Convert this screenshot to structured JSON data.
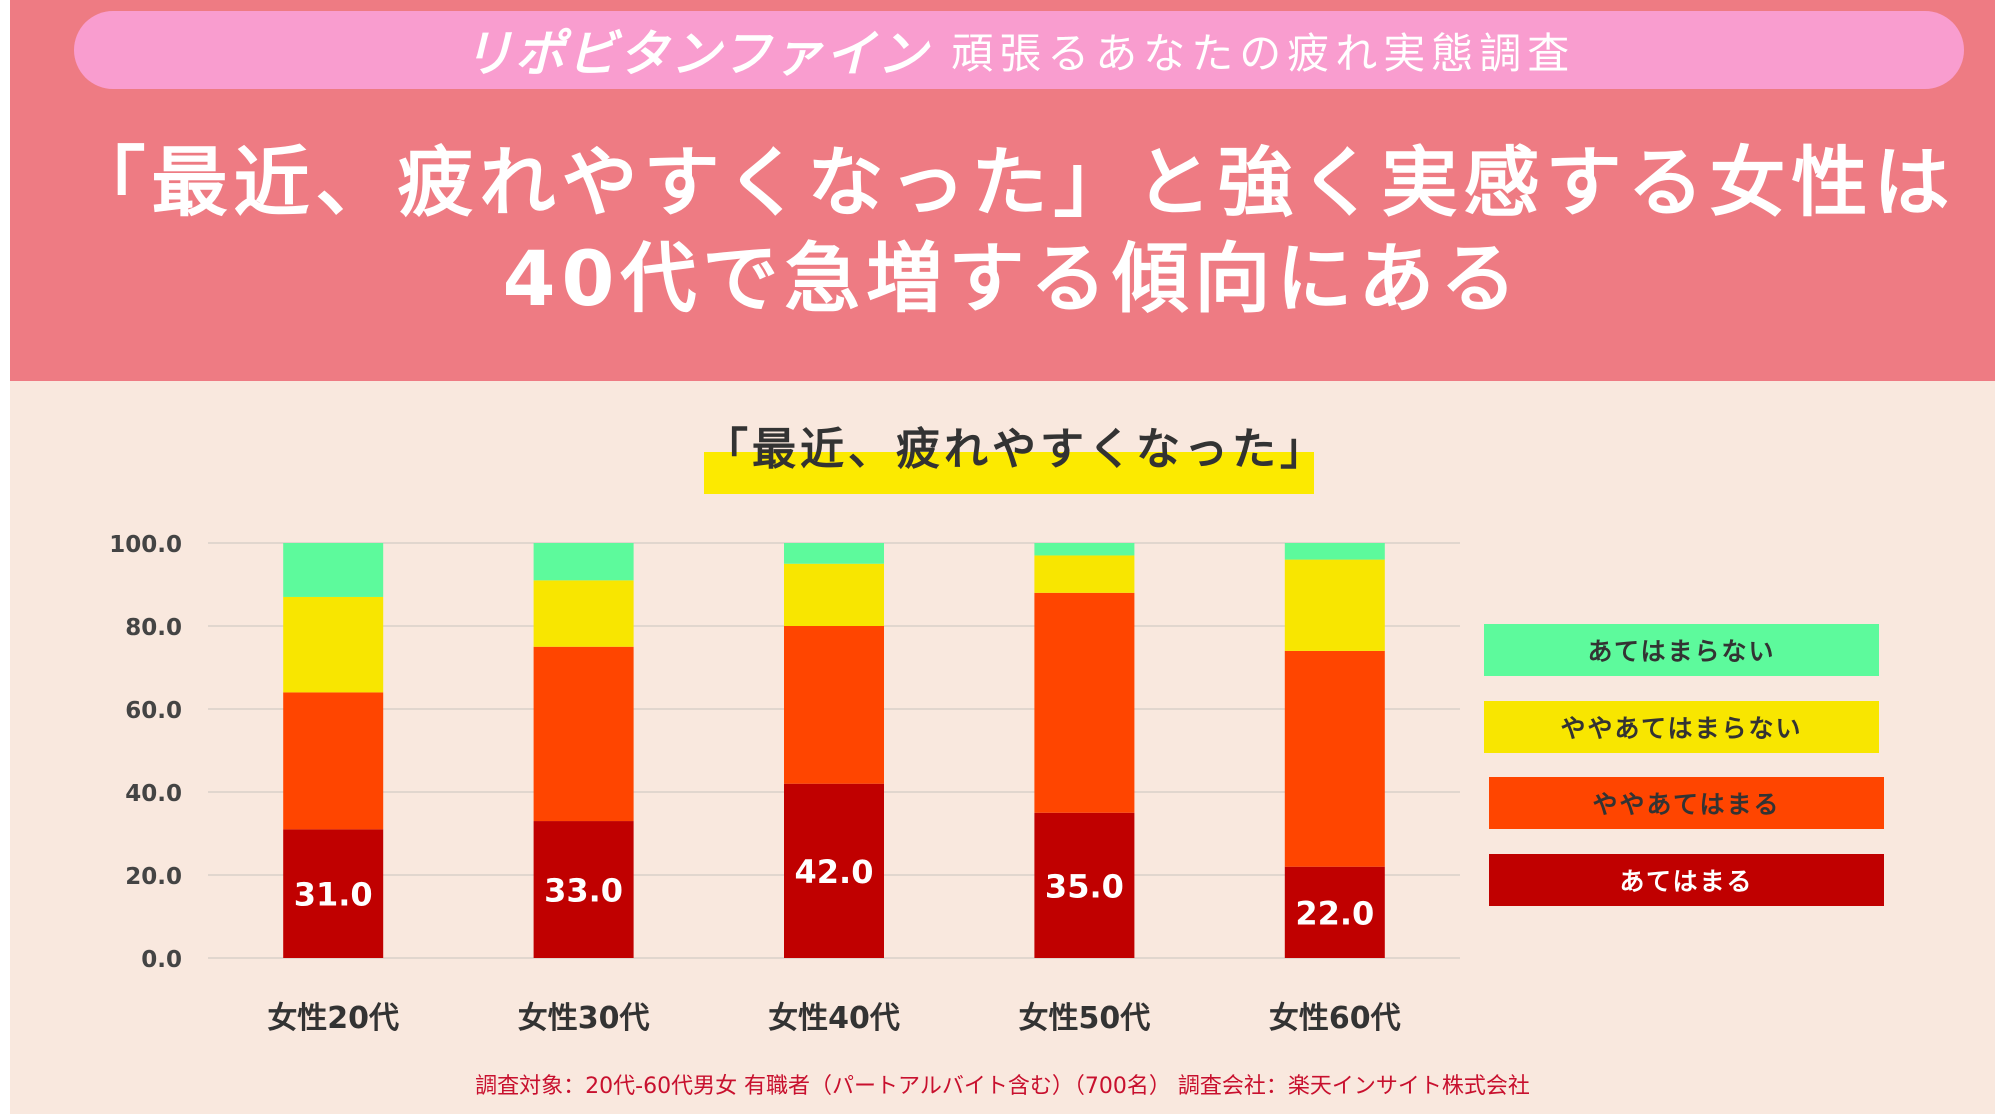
{
  "header": {
    "brand": "リポビタンファイン",
    "survey_title": "頑張るあなたの疲れ実態調査",
    "headline_line1": "「最近、疲れやすくなった」と強く実感する女性は",
    "headline_line2": "40代で急増する傾向にある"
  },
  "colors": {
    "header_bg": "#ee7b83",
    "pill_bg": "#f99dcf",
    "panel_bg": "#f9e8de",
    "highlight": "#fcea00",
    "footnote": "#c8102e"
  },
  "chart_data": {
    "type": "bar",
    "stacked": true,
    "title": "「最近、疲れやすくなった」",
    "xlabel": "",
    "ylabel": "",
    "ylim": [
      0,
      100
    ],
    "yticks": [
      "0.0",
      "20.0",
      "40.0",
      "60.0",
      "80.0",
      "100.0"
    ],
    "categories": [
      "女性20代",
      "女性30代",
      "女性40代",
      "女性50代",
      "女性60代"
    ],
    "series": [
      {
        "name": "あてはまる",
        "color": "#c00000",
        "values": [
          31,
          33,
          42,
          35,
          22
        ],
        "labels": [
          "31.0",
          "33.0",
          "42.0",
          "35.0",
          "22.0"
        ]
      },
      {
        "name": "ややあてはまる",
        "color": "#ff4500",
        "values": [
          33,
          42,
          38,
          53,
          52
        ]
      },
      {
        "name": "ややあてはまらない",
        "color": "#f8e600",
        "values": [
          23,
          16,
          15,
          9,
          22
        ]
      },
      {
        "name": "あてはまらない",
        "color": "#5dfa9c",
        "values": [
          13,
          9,
          5,
          3,
          4
        ]
      }
    ],
    "legend_position": "right",
    "legend_order": [
      "あてはまらない",
      "ややあてはまらない",
      "ややあてはまる",
      "あてはまる"
    ],
    "grid": true
  },
  "footnote": "調査対象：20代-60代男女 有職者（パートアルバイト含む）（700名） 調査会社：楽天インサイト株式会社"
}
